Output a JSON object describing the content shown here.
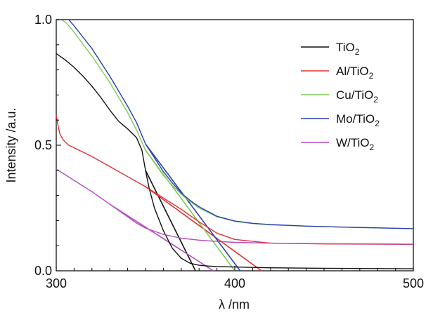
{
  "chart_data": {
    "type": "line",
    "xlabel": "λ /nm",
    "ylabel": "Intensity /a.u.",
    "xlim": [
      300,
      500
    ],
    "ylim": [
      0,
      1.0
    ],
    "x_ticks": [
      "300",
      "400",
      "500"
    ],
    "y_ticks": [
      "0.0",
      "0.5",
      "1.0"
    ],
    "grid": false,
    "legend_position": "top-right",
    "series": [
      {
        "name": "TiO2",
        "label_main": "TiO",
        "label_sub": "2",
        "color": "#111111",
        "x": [
          300,
          302,
          305,
          310,
          315,
          320,
          325,
          330,
          335,
          340,
          345,
          348,
          350,
          352,
          355,
          360,
          365,
          370,
          375,
          380,
          385,
          390,
          400,
          420,
          450,
          480,
          500
        ],
        "y": [
          0.865,
          0.855,
          0.84,
          0.81,
          0.775,
          0.735,
          0.69,
          0.64,
          0.595,
          0.565,
          0.53,
          0.48,
          0.4,
          0.33,
          0.25,
          0.16,
          0.09,
          0.05,
          0.03,
          0.022,
          0.019,
          0.017,
          0.015,
          0.012,
          0.01,
          0.009,
          0.008
        ]
      },
      {
        "name": "Al/TiO2",
        "label_main": "Al/TiO",
        "label_sub": "2",
        "color": "#e03030",
        "x": [
          300,
          301,
          302,
          304,
          307,
          310,
          320,
          330,
          340,
          350,
          360,
          370,
          380,
          390,
          400,
          420,
          450,
          480,
          500
        ],
        "y": [
          0.62,
          0.58,
          0.545,
          0.52,
          0.5,
          0.49,
          0.455,
          0.415,
          0.375,
          0.335,
          0.29,
          0.245,
          0.195,
          0.15,
          0.125,
          0.11,
          0.107,
          0.106,
          0.105
        ]
      },
      {
        "name": "Cu/TiO2",
        "label_main": "Cu/TiO",
        "label_sub": "2",
        "color": "#7dcc5a",
        "x": [
          300,
          303,
          306,
          310,
          320,
          330,
          340,
          345,
          350,
          355,
          360,
          365,
          370,
          375,
          380,
          390,
          400,
          410,
          420,
          440,
          460,
          480,
          500
        ],
        "y": [
          1.0,
          1.0,
          0.985,
          0.95,
          0.855,
          0.75,
          0.63,
          0.56,
          0.48,
          0.43,
          0.38,
          0.34,
          0.305,
          0.275,
          0.25,
          0.215,
          0.197,
          0.188,
          0.183,
          0.178,
          0.174,
          0.171,
          0.168
        ]
      },
      {
        "name": "Mo/TiO2",
        "label_main": "Mo/TiO",
        "label_sub": "2",
        "color": "#2a3fb0",
        "x": [
          300,
          303,
          307,
          310,
          320,
          330,
          340,
          345,
          350,
          355,
          360,
          365,
          370,
          375,
          380,
          390,
          400,
          410,
          420,
          440,
          460,
          480,
          500
        ],
        "y": [
          1.0,
          1.0,
          1.0,
          0.975,
          0.885,
          0.775,
          0.655,
          0.59,
          0.505,
          0.45,
          0.395,
          0.35,
          0.31,
          0.28,
          0.255,
          0.217,
          0.198,
          0.189,
          0.184,
          0.178,
          0.174,
          0.171,
          0.168
        ]
      },
      {
        "name": "W/TiO2",
        "label_main": "W/TiO",
        "label_sub": "2",
        "color": "#b34cc0",
        "x": [
          300,
          310,
          320,
          330,
          340,
          345,
          350,
          360,
          370,
          380,
          390,
          400,
          420,
          450,
          480,
          500
        ],
        "y": [
          0.405,
          0.36,
          0.315,
          0.265,
          0.215,
          0.19,
          0.17,
          0.145,
          0.13,
          0.122,
          0.117,
          0.113,
          0.11,
          0.108,
          0.107,
          0.106
        ]
      }
    ],
    "tangent_lines": [
      {
        "series": "TiO2",
        "color": "#111111",
        "x": [
          350,
          378
        ],
        "y": [
          0.4,
          0.0
        ]
      },
      {
        "series": "Al/TiO2",
        "color": "#e03030",
        "x": [
          350,
          415
        ],
        "y": [
          0.335,
          0.0
        ]
      },
      {
        "series": "Cu/TiO2",
        "color": "#7dcc5a",
        "x": [
          350,
          400
        ],
        "y": [
          0.48,
          0.0
        ]
      },
      {
        "series": "Mo/TiO2",
        "color": "#2a3fb0",
        "x": [
          350,
          403
        ],
        "y": [
          0.505,
          0.0
        ]
      },
      {
        "series": "W/TiO2",
        "color": "#b34cc0",
        "x": [
          330,
          388
        ],
        "y": [
          0.265,
          0.0
        ]
      }
    ]
  }
}
